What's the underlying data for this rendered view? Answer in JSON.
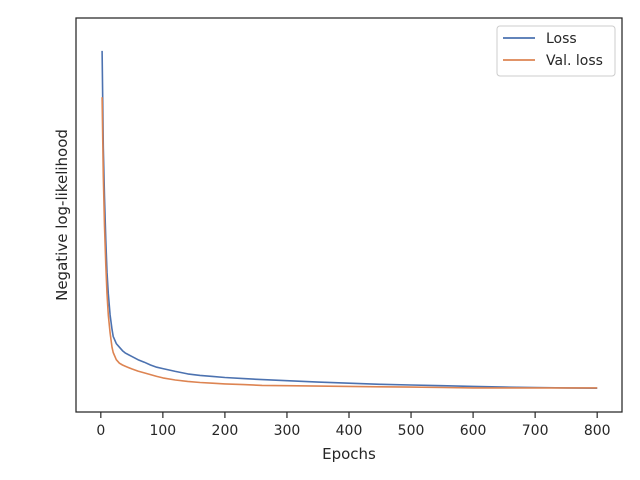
{
  "chart_data": {
    "type": "line",
    "title": "",
    "xlabel": "Epochs",
    "ylabel": "Negative log-likelihood",
    "xlim": [
      -40,
      840
    ],
    "ylim": [
      0,
      1
    ],
    "x_ticks": [
      0,
      100,
      200,
      300,
      400,
      500,
      600,
      700,
      800
    ],
    "y_ticks_visible": false,
    "grid": false,
    "legend_position": "top-right",
    "series": [
      {
        "name": "Loss",
        "color": "#4c72b0",
        "x": [
          2,
          4,
          6,
          8,
          10,
          12,
          15,
          18,
          20,
          25,
          30,
          35,
          40,
          50,
          60,
          70,
          80,
          90,
          100,
          120,
          140,
          160,
          180,
          200,
          230,
          260,
          300,
          350,
          400,
          450,
          500,
          550,
          600,
          650,
          700,
          750,
          800
        ],
        "y": [
          0.95,
          0.68,
          0.54,
          0.42,
          0.33,
          0.27,
          0.21,
          0.17,
          0.15,
          0.13,
          0.12,
          0.11,
          0.103,
          0.094,
          0.085,
          0.078,
          0.07,
          0.064,
          0.06,
          0.052,
          0.045,
          0.041,
          0.038,
          0.035,
          0.032,
          0.029,
          0.026,
          0.022,
          0.019,
          0.016,
          0.014,
          0.012,
          0.01,
          0.008,
          0.007,
          0.006,
          0.005
        ]
      },
      {
        "name": "Val. loss",
        "color": "#dd8452",
        "x": [
          2,
          4,
          6,
          8,
          10,
          12,
          15,
          18,
          20,
          25,
          30,
          35,
          40,
          50,
          60,
          70,
          80,
          90,
          100,
          120,
          140,
          160,
          180,
          200,
          230,
          260,
          300,
          350,
          400,
          450,
          500,
          550,
          600,
          650,
          700,
          750,
          800
        ],
        "y": [
          0.82,
          0.6,
          0.46,
          0.35,
          0.27,
          0.21,
          0.16,
          0.12,
          0.105,
          0.085,
          0.075,
          0.07,
          0.066,
          0.059,
          0.053,
          0.048,
          0.043,
          0.038,
          0.034,
          0.028,
          0.024,
          0.021,
          0.019,
          0.017,
          0.015,
          0.013,
          0.012,
          0.011,
          0.01,
          0.009,
          0.008,
          0.007,
          0.006,
          0.006,
          0.006,
          0.006,
          0.006
        ]
      }
    ]
  }
}
